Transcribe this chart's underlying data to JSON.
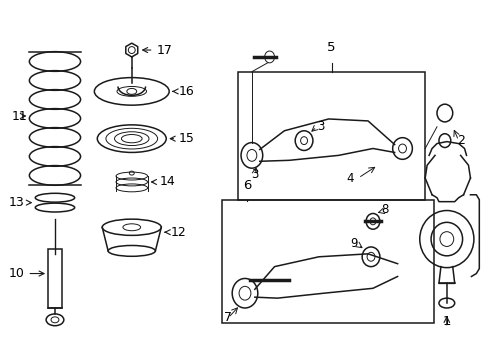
{
  "background_color": "#ffffff",
  "line_color": "#1a1a1a",
  "box_color": "#555555",
  "label_fontsize": 8.5,
  "figsize": [
    4.89,
    3.6
  ],
  "dpi": 100
}
